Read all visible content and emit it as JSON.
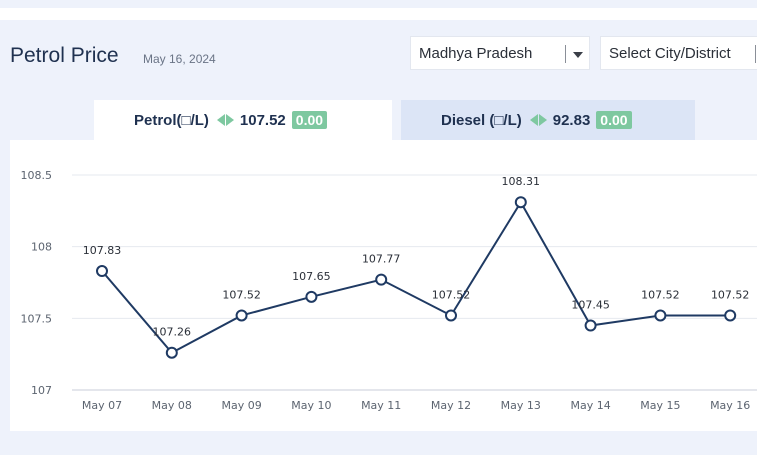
{
  "header": {
    "title": "Petrol Price",
    "date": "May 16, 2024"
  },
  "filters": {
    "state": "Madhya Pradesh",
    "city_placeholder": "Select City/District"
  },
  "tabs": [
    {
      "label": "Petrol(□/L)",
      "price": "107.52",
      "change": "0.00",
      "active": true
    },
    {
      "label": "Diesel (□/L)",
      "price": "92.83",
      "change": "0.00",
      "active": false
    }
  ],
  "colors": {
    "line": "#1f3a63",
    "badge": "#7ec8a0",
    "panel": "#eef2fb",
    "tab_inactive": "#dce5f6"
  },
  "chart_data": {
    "type": "line",
    "categories": [
      "May 07",
      "May 08",
      "May 09",
      "May 10",
      "May 11",
      "May 12",
      "May 13",
      "May 14",
      "May 15",
      "May 16"
    ],
    "series": [
      {
        "values": [
          107.83,
          107.26,
          107.52,
          107.65,
          107.77,
          107.52,
          108.31,
          107.45,
          107.52,
          107.52
        ]
      }
    ],
    "data_labels": [
      "107.83",
      "107.26",
      "107.52",
      "107.65",
      "107.77",
      "107.52",
      "108.31",
      "107.45",
      "107.52",
      "107.52"
    ],
    "yticks": [
      107,
      107.5,
      108,
      108.5
    ],
    "ytick_labels": [
      "107",
      "107.5",
      "108",
      "108.5"
    ],
    "ylim": [
      107,
      108.5
    ],
    "grid": true
  }
}
